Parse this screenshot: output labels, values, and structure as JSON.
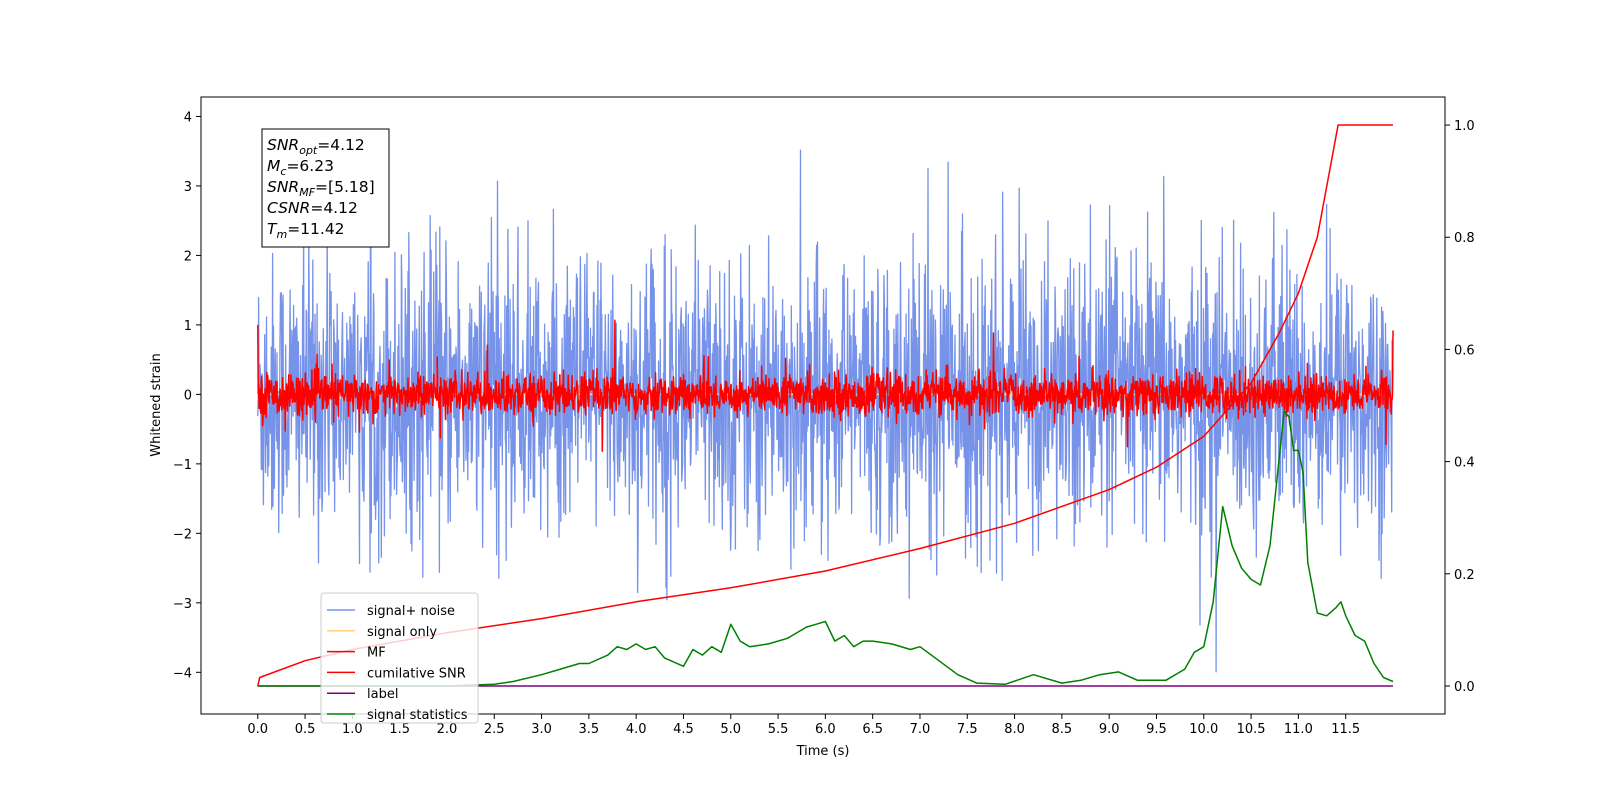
{
  "chart_data": {
    "type": "line",
    "xlabel": "Time (s)",
    "ylabel": "Whitened strain",
    "xlim": [
      -0.6,
      12.55
    ],
    "ylim": [
      -4.6,
      4.28
    ],
    "y2lim": [
      -0.05,
      1.05
    ],
    "x_ticks": [
      "0.0",
      "0.5",
      "1.0",
      "1.5",
      "2.0",
      "2.5",
      "3.0",
      "3.5",
      "4.0",
      "4.5",
      "5.0",
      "5.5",
      "6.0",
      "6.5",
      "7.0",
      "7.5",
      "8.0",
      "8.5",
      "9.0",
      "9.5",
      "10.0",
      "10.5",
      "11.0",
      "11.5"
    ],
    "y_ticks": [
      "4",
      "3",
      "2",
      "1",
      "0",
      "−1",
      "−2",
      "−3",
      "−4"
    ],
    "y2_ticks": [
      "1.0",
      "0.8",
      "0.6",
      "0.4",
      "0.2",
      "0.0"
    ],
    "legend_position": "lower-left",
    "annotation": {
      "snr_opt": {
        "main": "SNR",
        "sub": "opt",
        "value": "=4.12"
      },
      "mc": {
        "main": "M",
        "sub": "c",
        "value": "=6.23"
      },
      "snr_mf": {
        "main": "SNR",
        "sub": "MF",
        "value": "=[5.18]"
      },
      "csnr": {
        "main": "CSNR",
        "sub": "",
        "value": "=4.12"
      },
      "tm": {
        "main": "T",
        "sub": "m",
        "value": "=11.42"
      }
    },
    "series": [
      {
        "name": "signal+ noise",
        "color": "#4169e1",
        "axis": "left",
        "style": "noise",
        "noise_sigma": 1.0,
        "x_range": [
          0.0,
          12.0
        ]
      },
      {
        "name": "signal only",
        "color": "#ffd27f",
        "axis": "left",
        "style": "flat",
        "x_range": [
          0.0,
          12.0
        ]
      },
      {
        "name": "MF",
        "color": "#ff0000",
        "axis": "left",
        "style": "noise",
        "noise_sigma": 0.15,
        "x_range": [
          0.0,
          12.0
        ]
      },
      {
        "name": "cumilative SNR",
        "color": "#ff0000",
        "axis": "right",
        "x": [
          0.0,
          0.02,
          0.5,
          1.0,
          2.0,
          3.0,
          4.0,
          5.0,
          6.0,
          7.0,
          8.0,
          9.0,
          9.5,
          10.0,
          10.5,
          10.8,
          11.0,
          11.2,
          11.42,
          12.0
        ],
        "values": [
          0.0,
          0.015,
          0.045,
          0.065,
          0.095,
          0.12,
          0.15,
          0.175,
          0.205,
          0.245,
          0.29,
          0.35,
          0.39,
          0.445,
          0.54,
          0.63,
          0.7,
          0.8,
          1.0,
          1.0
        ]
      },
      {
        "name": "label",
        "color": "#800080",
        "axis": "right",
        "x": [
          0.0,
          12.0
        ],
        "values": [
          0.0,
          0.0
        ]
      },
      {
        "name": "signal statistics",
        "color": "#008000",
        "axis": "right",
        "x": [
          0.0,
          0.5,
          1.0,
          1.5,
          2.0,
          2.5,
          2.7,
          3.0,
          3.2,
          3.4,
          3.5,
          3.7,
          3.8,
          3.9,
          4.0,
          4.1,
          4.2,
          4.3,
          4.5,
          4.6,
          4.7,
          4.8,
          4.9,
          5.0,
          5.1,
          5.2,
          5.4,
          5.6,
          5.8,
          5.9,
          6.0,
          6.1,
          6.2,
          6.3,
          6.4,
          6.5,
          6.7,
          6.9,
          7.0,
          7.2,
          7.4,
          7.6,
          7.9,
          8.2,
          8.5,
          8.7,
          8.9,
          9.1,
          9.3,
          9.6,
          9.8,
          9.9,
          10.0,
          10.1,
          10.2,
          10.3,
          10.4,
          10.5,
          10.6,
          10.7,
          10.8,
          10.85,
          10.9,
          10.95,
          11.0,
          11.05,
          11.1,
          11.2,
          11.3,
          11.4,
          11.45,
          11.5,
          11.6,
          11.7,
          11.8,
          11.9,
          12.0
        ],
        "values": [
          0.0,
          0.0,
          0.0,
          0.0,
          0.0,
          0.003,
          0.008,
          0.02,
          0.03,
          0.04,
          0.04,
          0.055,
          0.07,
          0.065,
          0.075,
          0.065,
          0.07,
          0.05,
          0.035,
          0.065,
          0.055,
          0.07,
          0.06,
          0.11,
          0.08,
          0.07,
          0.075,
          0.085,
          0.105,
          0.11,
          0.115,
          0.08,
          0.09,
          0.07,
          0.08,
          0.08,
          0.075,
          0.065,
          0.07,
          0.045,
          0.02,
          0.005,
          0.003,
          0.02,
          0.005,
          0.01,
          0.02,
          0.025,
          0.01,
          0.01,
          0.03,
          0.06,
          0.07,
          0.15,
          0.32,
          0.25,
          0.21,
          0.19,
          0.18,
          0.25,
          0.41,
          0.49,
          0.48,
          0.42,
          0.42,
          0.38,
          0.22,
          0.13,
          0.125,
          0.14,
          0.15,
          0.125,
          0.09,
          0.08,
          0.04,
          0.015,
          0.008
        ]
      }
    ]
  }
}
